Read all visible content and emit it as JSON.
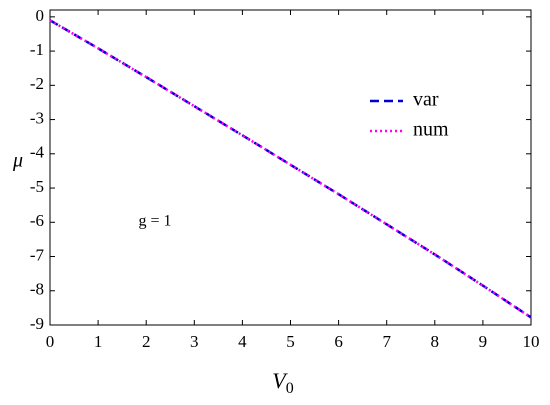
{
  "chart_data": {
    "type": "line",
    "xlabel": {
      "main": "V",
      "sub": "0"
    },
    "ylabel": "μ",
    "annotation": "g = 1",
    "x": [
      0,
      1,
      2,
      3,
      4,
      5,
      6,
      7,
      8,
      9,
      10
    ],
    "series": [
      {
        "name": "var",
        "color": "#0000cc",
        "style": "dashed",
        "values": [
          -0.1,
          -0.92,
          -1.76,
          -2.61,
          -3.46,
          -4.32,
          -5.18,
          -6.06,
          -6.94,
          -7.85,
          -8.78
        ]
      },
      {
        "name": "num",
        "color": "#ff00ff",
        "style": "dotted",
        "values": [
          -0.1,
          -0.92,
          -1.76,
          -2.61,
          -3.46,
          -4.32,
          -5.18,
          -6.06,
          -6.94,
          -7.85,
          -8.78
        ]
      }
    ],
    "xlim": [
      0,
      10
    ],
    "xticks": [
      0,
      1,
      2,
      3,
      4,
      5,
      6,
      7,
      8,
      9,
      10
    ],
    "ylim": [
      -9,
      0.2
    ],
    "yticks": [
      0,
      -1,
      -2,
      -3,
      -4,
      -5,
      -6,
      -7,
      -8,
      -9
    ],
    "grid": false
  }
}
